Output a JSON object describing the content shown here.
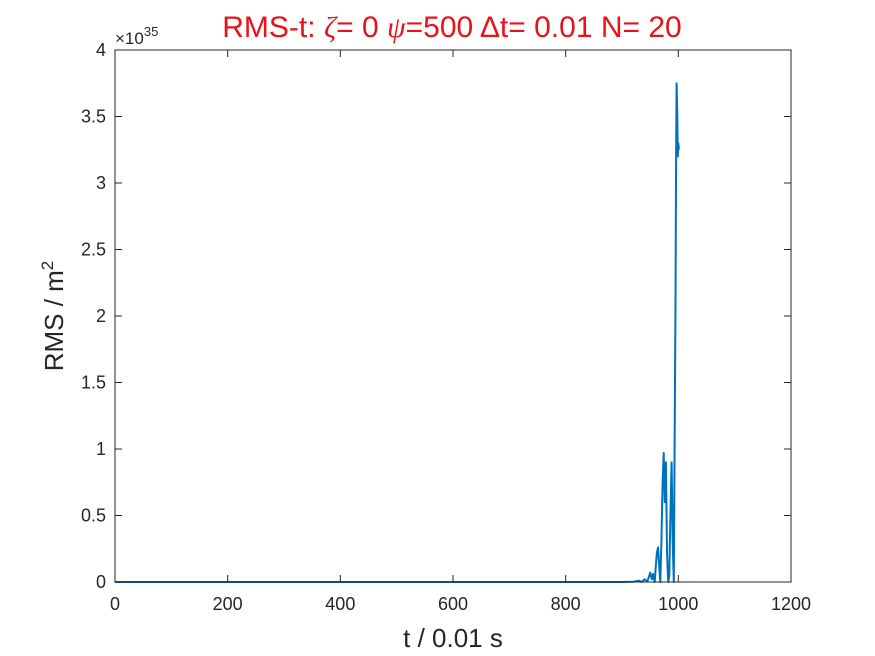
{
  "chart_data": {
    "type": "line",
    "title": {
      "prefix": "RMS-t:  ",
      "zeta_symbol": "ζ",
      "zeta_text": "= 0 ",
      "psi_symbol": "ψ",
      "psi_text": "=500 ",
      "delta_symbol": "Δ",
      "rest_text": "t= 0.01 N= 20"
    },
    "xlabel": "t / 0.01 s",
    "ylabel_main": "RMS / m",
    "ylabel_sup": "2",
    "y_exponent_base": "×10",
    "y_exponent_power": "35",
    "xlim": [
      0,
      1200
    ],
    "ylim": [
      0,
      4
    ],
    "x_ticks": [
      0,
      200,
      400,
      600,
      800,
      1000,
      1200
    ],
    "x_tick_labels": [
      "0",
      "200",
      "400",
      "600",
      "800",
      "1000",
      "1200"
    ],
    "y_ticks": [
      0,
      0.5,
      1,
      1.5,
      2,
      2.5,
      3,
      3.5,
      4
    ],
    "y_tick_labels": [
      "0",
      "0.5",
      "1",
      "1.5",
      "2",
      "2.5",
      "3",
      "3.5",
      "4"
    ],
    "grid": false,
    "series": [
      {
        "color": "#0072bd",
        "x": [
          0,
          200,
          400,
          600,
          800,
          900,
          920,
          930,
          935,
          940,
          945,
          948,
          950,
          953,
          955,
          958,
          960,
          962,
          964,
          966,
          968,
          970,
          972,
          974,
          976,
          978,
          980,
          982,
          984,
          986,
          988,
          990,
          992,
          994,
          995,
          996,
          997,
          998,
          999,
          1000,
          1001
        ],
        "y": [
          0,
          0,
          0,
          0,
          0,
          0,
          0.002,
          0.01,
          0,
          0.02,
          0.005,
          0.04,
          0.07,
          0.02,
          0.06,
          0.0,
          0.12,
          0.22,
          0.26,
          0.12,
          0.0,
          0.3,
          0.75,
          0.97,
          0.6,
          0.9,
          0.2,
          0.0,
          0.05,
          0.5,
          0.9,
          0.3,
          0.0,
          1.5,
          2.1,
          3.2,
          3.75,
          3.55,
          3.2,
          3.3,
          3.25
        ]
      }
    ]
  }
}
